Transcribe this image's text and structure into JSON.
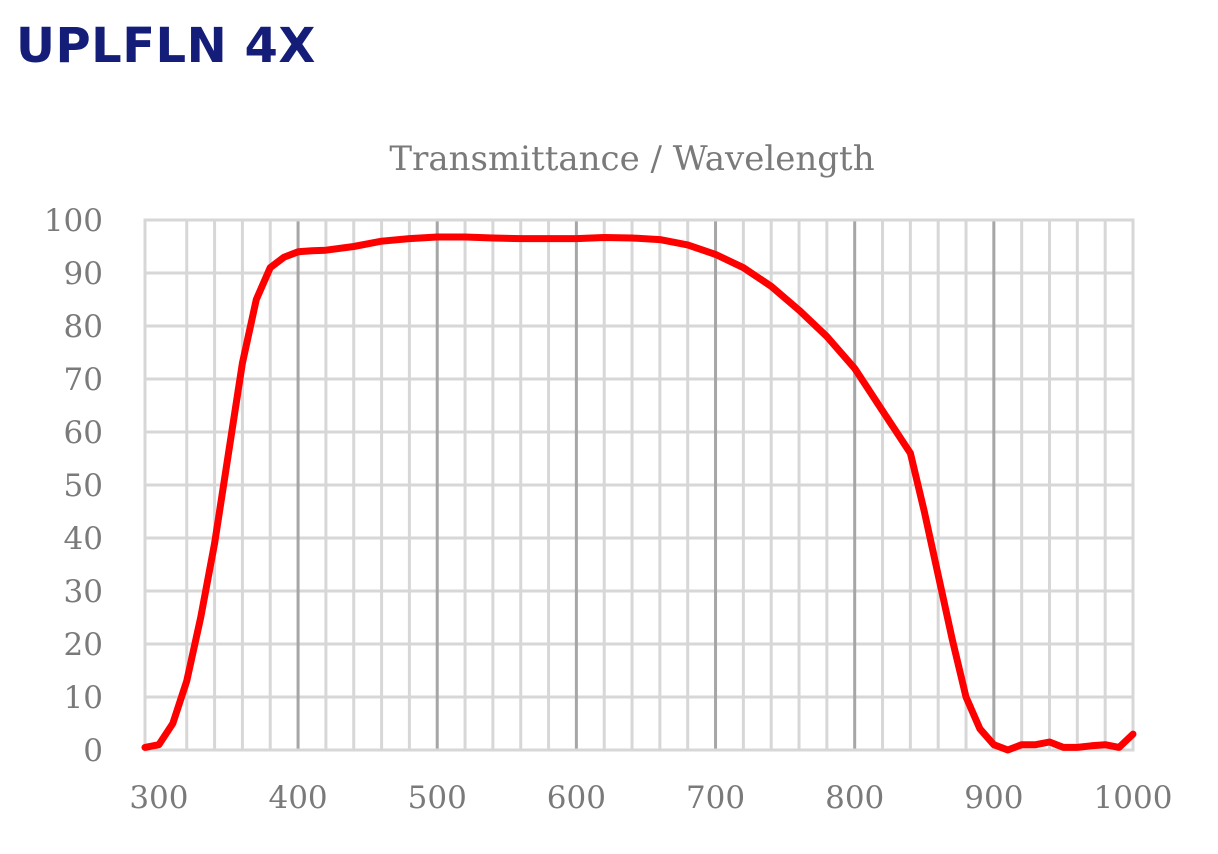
{
  "page": {
    "title": "UPLFLN 4X"
  },
  "chart_data": {
    "type": "line",
    "title": "Transmittance / Wavelength",
    "xlabel": "",
    "ylabel": "",
    "xlim": [
      290,
      1000
    ],
    "ylim": [
      0,
      100
    ],
    "xticks": [
      300,
      400,
      500,
      600,
      700,
      800,
      900,
      1000
    ],
    "yticks": [
      0,
      10,
      20,
      30,
      40,
      50,
      60,
      70,
      80,
      90,
      100
    ],
    "grid": true,
    "line_color": "#ff0000",
    "grid_minor_color": "#d7d7d7",
    "grid_major_color": "#a6a6a6",
    "series": [
      {
        "x": [
          290,
          300,
          310,
          320,
          330,
          340,
          350,
          360,
          370,
          380,
          390,
          400,
          410,
          420,
          440,
          460,
          480,
          500,
          520,
          540,
          560,
          580,
          600,
          620,
          640,
          660,
          680,
          700,
          720,
          740,
          760,
          780,
          800,
          820,
          840,
          850,
          860,
          870,
          880,
          890,
          900,
          910,
          920,
          930,
          940,
          950,
          960,
          970,
          980,
          990,
          1000
        ],
        "y": [
          0.5,
          1,
          5,
          13,
          25,
          39,
          56,
          73,
          85,
          91,
          93,
          94,
          94.2,
          94.3,
          95,
          96,
          96.5,
          96.8,
          96.8,
          96.6,
          96.5,
          96.5,
          96.5,
          96.7,
          96.6,
          96.3,
          95.3,
          93.5,
          91,
          87.5,
          83,
          78,
          72,
          64,
          56,
          45,
          33,
          21,
          10,
          4,
          1,
          0,
          1,
          1,
          1.5,
          0.5,
          0.5,
          0.8,
          1,
          0.5,
          3
        ]
      }
    ]
  }
}
